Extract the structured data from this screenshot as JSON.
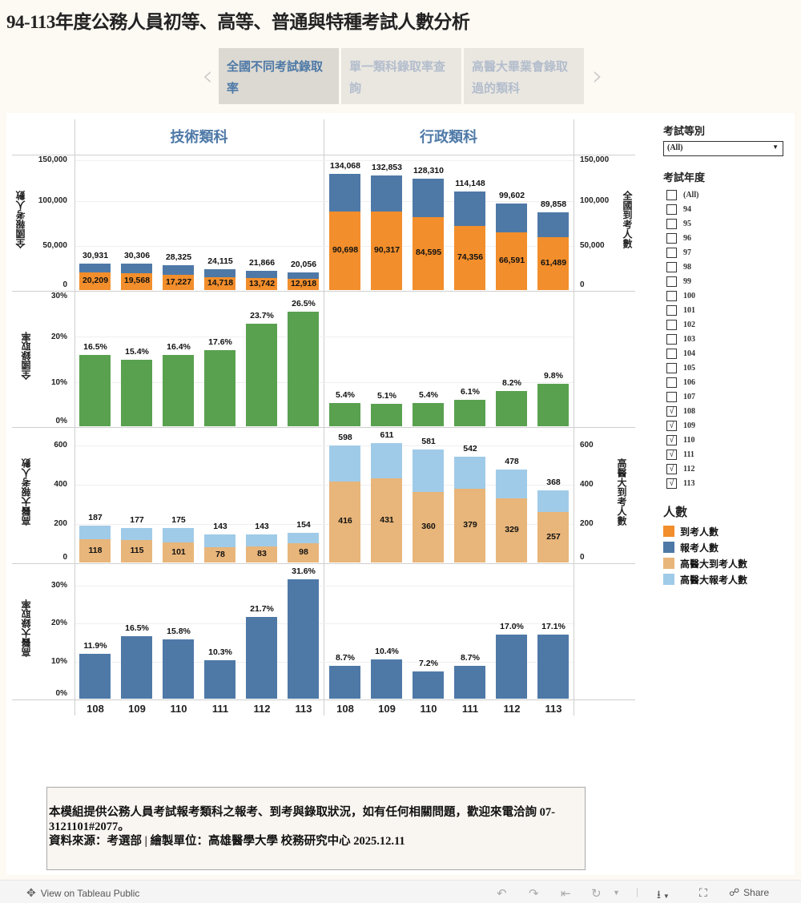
{
  "title": "94-113年度公務人員初等、高等、普通與特種考試人數分析",
  "nav": {
    "prev_icon": "chevron-left-icon",
    "next_icon": "chevron-right-icon",
    "tabs": [
      {
        "label": "全國不同考試錄取率",
        "active": true
      },
      {
        "label": "單一類科錄取率查詢",
        "active": false
      },
      {
        "label": "高醫大畢業會錄取過的類科",
        "active": false
      }
    ]
  },
  "columns": [
    "技術類科",
    "行政類科"
  ],
  "axes": {
    "row1_left_label": "全國報考人數",
    "row1_right_label": "全國到考人數",
    "row1_ticks": [
      "150,000",
      "100,000",
      "50,000",
      "0"
    ],
    "row2_left_label": "全國錄取率",
    "row2_ticks": [
      "30%",
      "20%",
      "10%",
      "0%"
    ],
    "row3_left_label": "高醫大報考人數",
    "row3_right_label": "高醫大到考人數",
    "row3_ticks": [
      "600",
      "400",
      "200",
      "0"
    ],
    "row4_left_label": "高醫大錄取率",
    "row4_ticks": [
      "30%",
      "20%",
      "10%",
      "0%"
    ]
  },
  "years": [
    "108",
    "109",
    "110",
    "111",
    "112",
    "113"
  ],
  "chart_data": [
    {
      "type": "bar",
      "title": "全國報考人數 / 全國到考人數",
      "ylabel": "全國報考人數",
      "ylabel_right": "全國到考人數",
      "ylim": [
        0,
        150000
      ],
      "categories": [
        "108",
        "109",
        "110",
        "111",
        "112",
        "113"
      ],
      "panels": [
        "技術類科",
        "行政類科"
      ],
      "series": [
        {
          "name": "報考人數",
          "color": "#4e79a7",
          "技術類科": [
            30931,
            30306,
            28325,
            24115,
            21866,
            20056
          ],
          "行政類科": [
            134068,
            132853,
            128310,
            114148,
            99602,
            89858
          ]
        },
        {
          "name": "到考人數",
          "color": "#f28e2b",
          "技術類科": [
            20209,
            19568,
            17227,
            14718,
            13742,
            12918
          ],
          "行政類科": [
            90698,
            90317,
            84595,
            74356,
            66591,
            61489
          ]
        }
      ]
    },
    {
      "type": "bar",
      "title": "全國錄取率",
      "ylabel": "全國錄取率",
      "ylim": [
        0,
        0.3
      ],
      "categories": [
        "108",
        "109",
        "110",
        "111",
        "112",
        "113"
      ],
      "series": [
        {
          "name": "技術類科",
          "color": "#59a14f",
          "values": [
            16.5,
            15.4,
            16.4,
            17.6,
            23.7,
            26.5
          ]
        },
        {
          "name": "行政類科",
          "color": "#59a14f",
          "values": [
            5.4,
            5.1,
            5.4,
            6.1,
            8.2,
            9.8
          ]
        }
      ]
    },
    {
      "type": "bar",
      "title": "高醫大報考人數 / 高醫大到考人數",
      "ylabel": "高醫大報考人數",
      "ylabel_right": "高醫大到考人數",
      "ylim": [
        0,
        600
      ],
      "categories": [
        "108",
        "109",
        "110",
        "111",
        "112",
        "113"
      ],
      "series": [
        {
          "name": "高醫大報考人數",
          "color": "#a0cbe8",
          "技術類科": [
            187,
            177,
            175,
            143,
            143,
            154
          ],
          "行政類科": [
            598,
            611,
            581,
            542,
            478,
            368
          ]
        },
        {
          "name": "高醫大到考人數",
          "color": "#e8b57a",
          "技術類科": [
            118,
            115,
            101,
            78,
            83,
            98
          ],
          "行政類科": [
            416,
            431,
            360,
            379,
            329,
            257
          ]
        }
      ]
    },
    {
      "type": "bar",
      "title": "高醫大錄取率",
      "ylabel": "高醫大錄取率",
      "ylim": [
        0,
        0.35
      ],
      "categories": [
        "108",
        "109",
        "110",
        "111",
        "112",
        "113"
      ],
      "series": [
        {
          "name": "技術類科",
          "color": "#4e79a7",
          "values": [
            11.9,
            16.5,
            15.8,
            10.3,
            21.7,
            31.6
          ]
        },
        {
          "name": "行政類科",
          "color": "#4e79a7",
          "values": [
            8.7,
            10.4,
            7.2,
            8.7,
            17.0,
            17.1
          ]
        }
      ]
    }
  ],
  "labels": {
    "r1_tech_total": [
      "30,931",
      "30,306",
      "28,325",
      "24,115",
      "21,866",
      "20,056"
    ],
    "r1_tech_att": [
      "20,209",
      "19,568",
      "17,227",
      "14,718",
      "13,742",
      "12,918"
    ],
    "r1_admin_total": [
      "134,068",
      "132,853",
      "128,310",
      "114,148",
      "99,602",
      "89,858"
    ],
    "r1_admin_att": [
      "90,698",
      "90,317",
      "84,595",
      "74,356",
      "66,591",
      "61,489"
    ],
    "r2_tech": [
      "16.5%",
      "15.4%",
      "16.4%",
      "17.6%",
      "23.7%",
      "26.5%"
    ],
    "r2_admin": [
      "5.4%",
      "5.1%",
      "5.4%",
      "6.1%",
      "8.2%",
      "9.8%"
    ],
    "r3_tech_total": [
      "187",
      "177",
      "175",
      "143",
      "143",
      "154"
    ],
    "r3_tech_att": [
      "118",
      "115",
      "101",
      "78",
      "83",
      "98"
    ],
    "r3_admin_total": [
      "598",
      "611",
      "581",
      "542",
      "478",
      "368"
    ],
    "r3_admin_att": [
      "416",
      "431",
      "360",
      "379",
      "329",
      "257"
    ],
    "r4_tech": [
      "11.9%",
      "16.5%",
      "15.8%",
      "10.3%",
      "21.7%",
      "31.6%"
    ],
    "r4_admin": [
      "8.7%",
      "10.4%",
      "7.2%",
      "8.7%",
      "17.0%",
      "17.1%"
    ]
  },
  "colors": {
    "attended": "#f28e2b",
    "registered": "#4e79a7",
    "kmu_attended": "#e8b57a",
    "kmu_registered": "#a0cbe8",
    "rate": "#59a14f",
    "kmu_rate": "#4e79a7"
  },
  "filters": {
    "exam_type": {
      "label": "考試等別",
      "value": "(All)"
    },
    "exam_year": {
      "label": "考試年度",
      "options": [
        {
          "label": "(All)",
          "checked": false
        },
        {
          "label": "94",
          "checked": false
        },
        {
          "label": "95",
          "checked": false
        },
        {
          "label": "96",
          "checked": false
        },
        {
          "label": "97",
          "checked": false
        },
        {
          "label": "98",
          "checked": false
        },
        {
          "label": "99",
          "checked": false
        },
        {
          "label": "100",
          "checked": false
        },
        {
          "label": "101",
          "checked": false
        },
        {
          "label": "102",
          "checked": false
        },
        {
          "label": "103",
          "checked": false
        },
        {
          "label": "104",
          "checked": false
        },
        {
          "label": "105",
          "checked": false
        },
        {
          "label": "106",
          "checked": false
        },
        {
          "label": "107",
          "checked": false
        },
        {
          "label": "108",
          "checked": true
        },
        {
          "label": "109",
          "checked": true
        },
        {
          "label": "110",
          "checked": true
        },
        {
          "label": "111",
          "checked": true
        },
        {
          "label": "112",
          "checked": true
        },
        {
          "label": "113",
          "checked": true
        }
      ]
    }
  },
  "legend": {
    "title": "人數",
    "items": [
      {
        "label": "到考人數",
        "color": "#f28e2b"
      },
      {
        "label": "報考人數",
        "color": "#4e79a7"
      },
      {
        "label": "高醫大到考人數",
        "color": "#e8b57a"
      },
      {
        "label": "高醫大報考人數",
        "color": "#a0cbe8"
      }
    ]
  },
  "note": {
    "line1": "本模組提供公務人員考試報考類科之報考、到考與錄取狀況，如有任何相關問題，歡迎來電洽詢 07-3121101#2077。",
    "line2": "資料來源：考選部 | 繪製單位：高雄醫學大學 校務研究中心 2025.12.11"
  },
  "footer": {
    "view_label": "View on Tableau Public",
    "share_label": "Share"
  }
}
